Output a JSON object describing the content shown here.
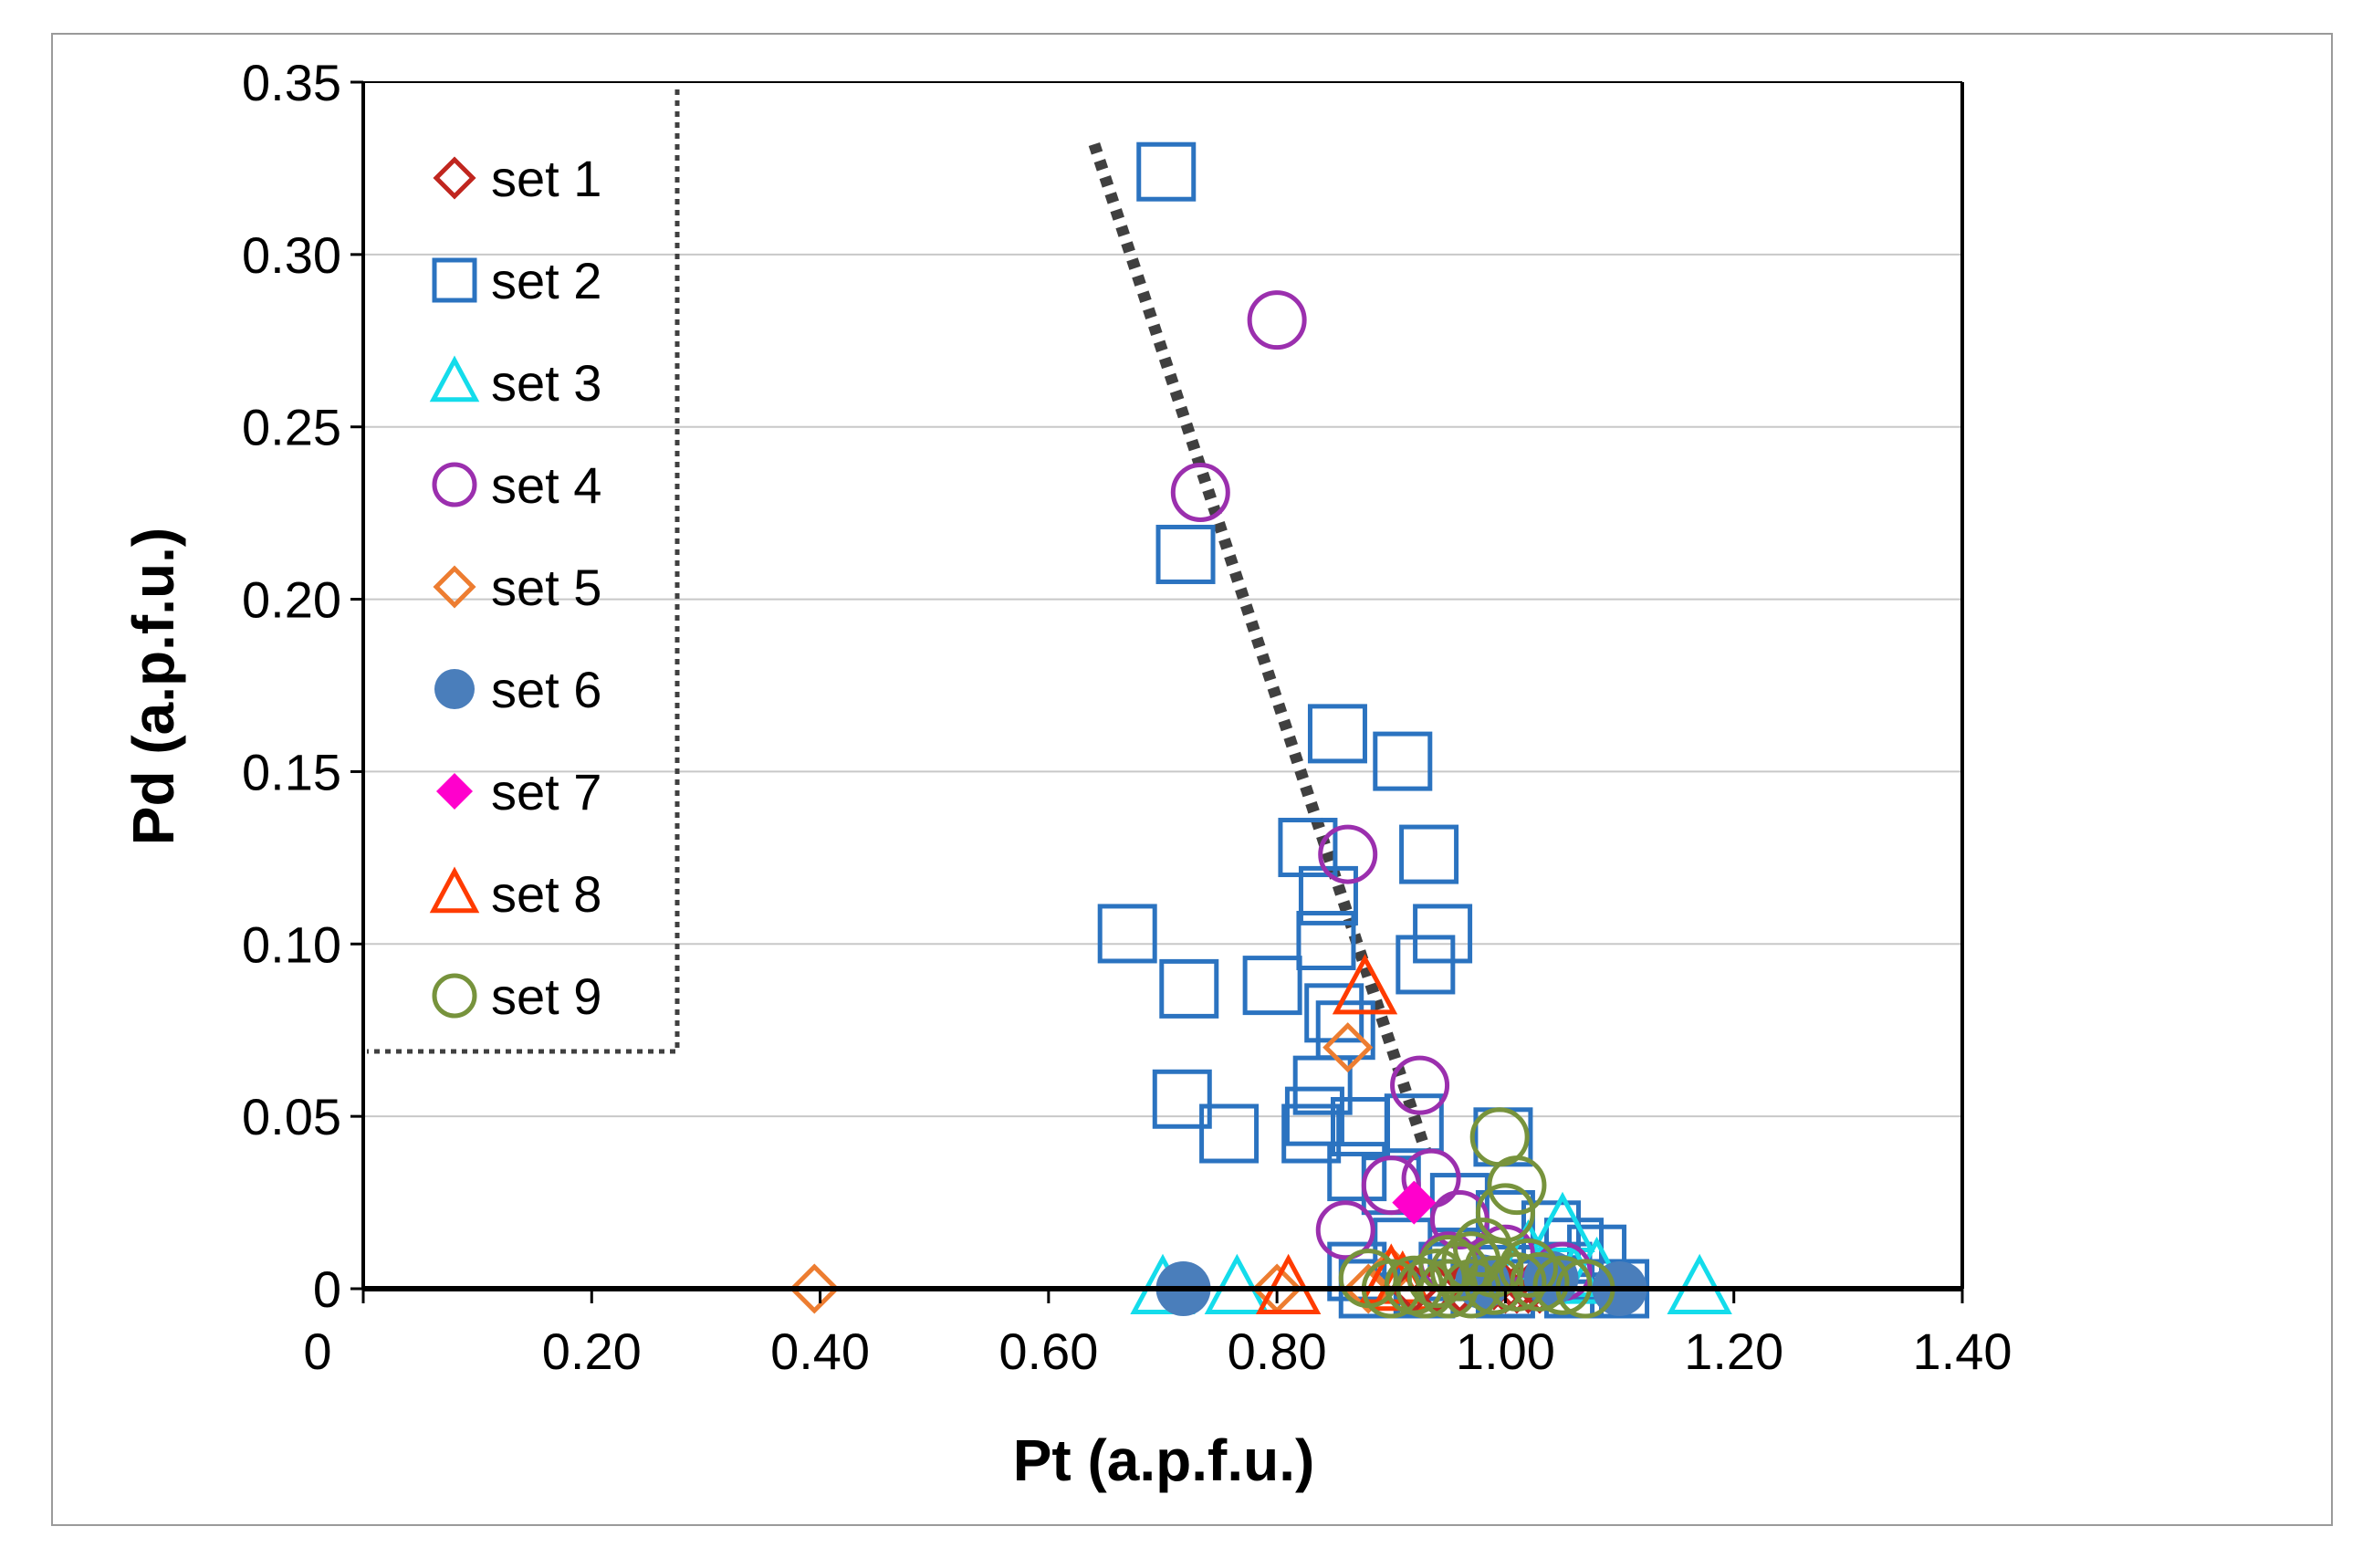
{
  "chart_data": {
    "type": "scatter",
    "title": "",
    "xlabel": "Pt (a.p.f.u.)",
    "ylabel": "Pd (a.p.f.u.)",
    "xlim": [
      0,
      1.4
    ],
    "ylim": [
      0,
      0.35
    ],
    "x_ticks": [
      {
        "v": 0,
        "label": "0"
      },
      {
        "v": 0.2,
        "label": "0.20"
      },
      {
        "v": 0.4,
        "label": "0.40"
      },
      {
        "v": 0.6,
        "label": "0.60"
      },
      {
        "v": 0.8,
        "label": "0.80"
      },
      {
        "v": 1.0,
        "label": "1.00"
      },
      {
        "v": 1.2,
        "label": "1.20"
      },
      {
        "v": 1.4,
        "label": "1.40"
      }
    ],
    "y_ticks": [
      {
        "v": 0,
        "label": "0"
      },
      {
        "v": 0.05,
        "label": "0.05"
      },
      {
        "v": 0.1,
        "label": "0.10"
      },
      {
        "v": 0.15,
        "label": "0.15"
      },
      {
        "v": 0.2,
        "label": "0.20"
      },
      {
        "v": 0.25,
        "label": "0.25"
      },
      {
        "v": 0.3,
        "label": "0.30"
      },
      {
        "v": 0.35,
        "label": "0.35"
      }
    ],
    "grid": "horizontal",
    "legend_position": "top-left",
    "series": [
      {
        "name": "set 1",
        "marker": "diamond",
        "filled": false,
        "color": "#C0261F",
        "points": [
          [
            0.92,
            0
          ],
          [
            0.94,
            0
          ],
          [
            0.96,
            0
          ],
          [
            0.98,
            0
          ],
          [
            1.0,
            0
          ],
          [
            1.01,
            0
          ],
          [
            1.02,
            0
          ],
          [
            1.03,
            0
          ],
          [
            0.97,
            0.002
          ],
          [
            0.99,
            0.001
          ]
        ]
      },
      {
        "name": "set 2",
        "marker": "square",
        "filled": false,
        "color": "#2B73C0",
        "points": [
          [
            0.703,
            0.324
          ],
          [
            0.72,
            0.213
          ],
          [
            0.853,
            0.161
          ],
          [
            0.91,
            0.153
          ],
          [
            0.827,
            0.128
          ],
          [
            0.933,
            0.126
          ],
          [
            0.845,
            0.114
          ],
          [
            0.669,
            0.103
          ],
          [
            0.945,
            0.103
          ],
          [
            0.843,
            0.101
          ],
          [
            0.93,
            0.094
          ],
          [
            0.723,
            0.087
          ],
          [
            0.796,
            0.088
          ],
          [
            0.85,
            0.08
          ],
          [
            0.86,
            0.075
          ],
          [
            0.84,
            0.059
          ],
          [
            0.717,
            0.055
          ],
          [
            0.833,
            0.05
          ],
          [
            0.758,
            0.045
          ],
          [
            0.83,
            0.045
          ],
          [
            0.873,
            0.047
          ],
          [
            0.92,
            0.048
          ],
          [
            0.998,
            0.044
          ],
          [
            0.87,
            0.034
          ],
          [
            0.9,
            0.03
          ],
          [
            0.96,
            0.025
          ],
          [
            1.0,
            0.02
          ],
          [
            1.04,
            0.017
          ],
          [
            0.91,
            0.012
          ],
          [
            1.06,
            0.012
          ],
          [
            1.08,
            0.01
          ],
          [
            0.87,
            0.005
          ],
          [
            0.95,
            0.005
          ],
          [
            1.05,
            0.005
          ],
          [
            1.1,
            0
          ],
          [
            0.88,
            0
          ],
          [
            0.93,
            0
          ],
          [
            1.0,
            0
          ],
          [
            1.06,
            0
          ]
        ]
      },
      {
        "name": "set 3",
        "marker": "triangle",
        "filled": false,
        "color": "#14DCEB",
        "points": [
          [
            0.7,
            0
          ],
          [
            0.765,
            0
          ],
          [
            1.05,
            0.018
          ],
          [
            1.17,
            0
          ],
          [
            1.08,
            0.005
          ],
          [
            1.06,
            0.003
          ],
          [
            1.02,
            0.01
          ]
        ]
      },
      {
        "name": "set 4",
        "marker": "circle",
        "filled": false,
        "color": "#9B2FAE",
        "points": [
          [
            0.8,
            0.281
          ],
          [
            0.733,
            0.231
          ],
          [
            0.862,
            0.126
          ],
          [
            0.925,
            0.059
          ],
          [
            0.9,
            0.03
          ],
          [
            0.935,
            0.032
          ],
          [
            0.86,
            0.017
          ],
          [
            0.96,
            0.02
          ],
          [
            1.0,
            0.01
          ],
          [
            1.05,
            0.005
          ],
          [
            0.95,
            0.008
          ]
        ]
      },
      {
        "name": "set 5",
        "marker": "diamond",
        "filled": false,
        "color": "#ED7D31",
        "points": [
          [
            0.395,
            0
          ],
          [
            0.8,
            0
          ],
          [
            0.862,
            0.07
          ],
          [
            0.88,
            0
          ],
          [
            0.9,
            0.005
          ]
        ]
      },
      {
        "name": "set 6",
        "marker": "circle",
        "filled": true,
        "color": "#4A7EBB",
        "points": [
          [
            0.718,
            0
          ],
          [
            1.1,
            0
          ],
          [
            0.98,
            0.002
          ],
          [
            1.04,
            0.003
          ]
        ]
      },
      {
        "name": "set 7",
        "marker": "diamond",
        "filled": true,
        "color": "#FF00CC",
        "points": [
          [
            0.92,
            0.025
          ]
        ]
      },
      {
        "name": "set 8",
        "marker": "triangle",
        "filled": false,
        "color": "#FF3B00",
        "points": [
          [
            0.877,
            0.087
          ],
          [
            0.81,
            0
          ],
          [
            0.9,
            0.003
          ],
          [
            0.91,
            0.001
          ]
        ]
      },
      {
        "name": "set 9",
        "marker": "circle",
        "filled": false,
        "color": "#77933C",
        "points": [
          [
            0.995,
            0.044
          ],
          [
            1.01,
            0.03
          ],
          [
            1.0,
            0.022
          ],
          [
            0.98,
            0.012
          ],
          [
            0.96,
            0.005
          ],
          [
            0.94,
            0.003
          ],
          [
            0.92,
            0.001
          ],
          [
            0.9,
            0
          ],
          [
            0.93,
            0
          ],
          [
            0.95,
            0
          ],
          [
            0.97,
            0
          ],
          [
            0.99,
            0.001
          ],
          [
            1.01,
            0.002
          ],
          [
            1.03,
            0.002
          ],
          [
            1.05,
            0.001
          ],
          [
            1.07,
            0
          ],
          [
            0.97,
            0.008
          ],
          [
            0.99,
            0.006
          ],
          [
            1.02,
            0.006
          ],
          [
            0.95,
            0.007
          ],
          [
            0.88,
            0.003
          ]
        ]
      }
    ],
    "trendline": {
      "style": "dotted",
      "color": "#404040",
      "from": [
        0.64,
        0.332
      ],
      "to": [
        0.93,
        0.04
      ]
    },
    "legend_box": {
      "style": "dotted",
      "color": "#404040"
    }
  }
}
